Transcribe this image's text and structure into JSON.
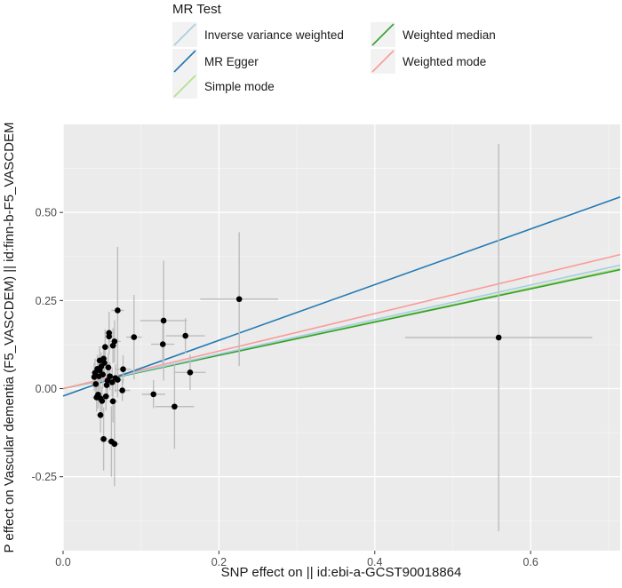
{
  "chart_data": {
    "type": "scatter",
    "xlabel": "SNP effect on  || id:ebi-a-GCST90018864",
    "ylabel": "P effect on Vascular dementia (F5_VASCDEM) || id:finn-b-F5_VASCDEM",
    "xlim": [
      0.0,
      0.715
    ],
    "ylim": [
      -0.46,
      0.75
    ],
    "x_ticks": [
      0.0,
      0.2,
      0.4,
      0.6
    ],
    "x_tick_labels": [
      "0.0",
      "0.2",
      "0.4",
      "0.6"
    ],
    "y_ticks": [
      -0.25,
      0.0,
      0.25,
      0.5
    ],
    "y_tick_labels": [
      "-0.25",
      "0.00",
      "0.25",
      "0.50"
    ],
    "grid": true,
    "legend": {
      "title": "MR Test",
      "placement": "top",
      "entries": [
        {
          "name": "Inverse variance weighted",
          "color": "#a6cee3"
        },
        {
          "name": "MR Egger",
          "color": "#1f78b4"
        },
        {
          "name": "Simple mode",
          "color": "#b2df8a"
        },
        {
          "name": "Weighted median",
          "color": "#33a02c"
        },
        {
          "name": "Weighted mode",
          "color": "#fb9a99"
        }
      ]
    },
    "lines": [
      {
        "name": "Inverse variance weighted",
        "color": "#a6cee3",
        "intercept": 0.0,
        "slope": 0.49
      },
      {
        "name": "MR Egger",
        "color": "#1f78b4",
        "intercept": -0.021,
        "slope": 0.79
      },
      {
        "name": "Simple mode",
        "color": "#b2df8a",
        "intercept": 0.0,
        "slope": 0.477
      },
      {
        "name": "Weighted median",
        "color": "#33a02c",
        "intercept": 0.0,
        "slope": 0.472
      },
      {
        "name": "Weighted mode",
        "color": "#fb9a99",
        "intercept": 0.0,
        "slope": 0.532
      }
    ],
    "points": [
      {
        "x": 0.559,
        "y": 0.145,
        "xerr": 0.12,
        "yerr": 0.55
      },
      {
        "x": 0.226,
        "y": 0.254,
        "xerr": 0.05,
        "yerr": 0.19
      },
      {
        "x": 0.157,
        "y": 0.15,
        "xerr": 0.025,
        "yerr": 0.05
      },
      {
        "x": 0.163,
        "y": 0.046,
        "xerr": 0.02,
        "yerr": 0.05
      },
      {
        "x": 0.143,
        "y": -0.051,
        "xerr": 0.025,
        "yerr": 0.12
      },
      {
        "x": 0.129,
        "y": 0.193,
        "xerr": 0.03,
        "yerr": 0.17
      },
      {
        "x": 0.128,
        "y": 0.126,
        "xerr": 0.015,
        "yerr": 0.06
      },
      {
        "x": 0.116,
        "y": -0.016,
        "xerr": 0.015,
        "yerr": 0.04
      },
      {
        "x": 0.091,
        "y": 0.146,
        "xerr": 0.01,
        "yerr": 0.12
      },
      {
        "x": 0.077,
        "y": 0.055,
        "xerr": 0.01,
        "yerr": 0.04
      },
      {
        "x": 0.076,
        "y": -0.005,
        "xerr": 0.01,
        "yerr": 0.03
      },
      {
        "x": 0.07,
        "y": 0.222,
        "xerr": 0.008,
        "yerr": 0.18
      },
      {
        "x": 0.07,
        "y": 0.025,
        "xerr": 0.006,
        "yerr": 0.05
      },
      {
        "x": 0.066,
        "y": 0.134,
        "xerr": 0.008,
        "yerr": 0.06
      },
      {
        "x": 0.064,
        "y": 0.122,
        "xerr": 0.006,
        "yerr": 0.05
      },
      {
        "x": 0.064,
        "y": -0.036,
        "xerr": 0.006,
        "yerr": 0.06
      },
      {
        "x": 0.066,
        "y": -0.157,
        "xerr": 0.006,
        "yerr": 0.12
      },
      {
        "x": 0.062,
        "y": -0.15,
        "xerr": 0.006,
        "yerr": 0.1
      },
      {
        "x": 0.059,
        "y": 0.158,
        "xerr": 0.006,
        "yerr": 0.06
      },
      {
        "x": 0.059,
        "y": 0.148,
        "xerr": 0.005,
        "yerr": 0.05
      },
      {
        "x": 0.058,
        "y": 0.06,
        "xerr": 0.005,
        "yerr": 0.04
      },
      {
        "x": 0.057,
        "y": 0.023,
        "xerr": 0.005,
        "yerr": 0.04
      },
      {
        "x": 0.056,
        "y": 0.01,
        "xerr": 0.005,
        "yerr": 0.04
      },
      {
        "x": 0.055,
        "y": -0.022,
        "xerr": 0.005,
        "yerr": 0.04
      },
      {
        "x": 0.054,
        "y": 0.118,
        "xerr": 0.005,
        "yerr": 0.05
      },
      {
        "x": 0.053,
        "y": 0.073,
        "xerr": 0.005,
        "yerr": 0.04
      },
      {
        "x": 0.052,
        "y": 0.085,
        "xerr": 0.005,
        "yerr": 0.04
      },
      {
        "x": 0.051,
        "y": 0.04,
        "xerr": 0.005,
        "yerr": 0.04
      },
      {
        "x": 0.05,
        "y": -0.035,
        "xerr": 0.005,
        "yerr": 0.04
      },
      {
        "x": 0.049,
        "y": 0.063,
        "xerr": 0.005,
        "yerr": 0.04
      },
      {
        "x": 0.048,
        "y": -0.028,
        "xerr": 0.005,
        "yerr": 0.04
      },
      {
        "x": 0.047,
        "y": 0.052,
        "xerr": 0.005,
        "yerr": 0.04
      },
      {
        "x": 0.047,
        "y": 0.08,
        "xerr": 0.005,
        "yerr": 0.04
      },
      {
        "x": 0.046,
        "y": 0.035,
        "xerr": 0.005,
        "yerr": 0.04
      },
      {
        "x": 0.045,
        "y": -0.017,
        "xerr": 0.005,
        "yerr": 0.04
      },
      {
        "x": 0.044,
        "y": 0.056,
        "xerr": 0.005,
        "yerr": 0.04
      },
      {
        "x": 0.043,
        "y": -0.025,
        "xerr": 0.005,
        "yerr": 0.04
      },
      {
        "x": 0.042,
        "y": 0.013,
        "xerr": 0.005,
        "yerr": 0.04
      },
      {
        "x": 0.041,
        "y": 0.045,
        "xerr": 0.005,
        "yerr": 0.04
      },
      {
        "x": 0.04,
        "y": 0.033,
        "xerr": 0.004,
        "yerr": 0.04
      },
      {
        "x": 0.048,
        "y": -0.075,
        "xerr": 0.005,
        "yerr": 0.05
      },
      {
        "x": 0.052,
        "y": -0.143,
        "xerr": 0.005,
        "yerr": 0.09
      },
      {
        "x": 0.06,
        "y": 0.035,
        "xerr": 0.005,
        "yerr": 0.04
      },
      {
        "x": 0.063,
        "y": 0.018,
        "xerr": 0.005,
        "yerr": 0.04
      },
      {
        "x": 0.067,
        "y": 0.03,
        "xerr": 0.005,
        "yerr": 0.04
      }
    ]
  }
}
